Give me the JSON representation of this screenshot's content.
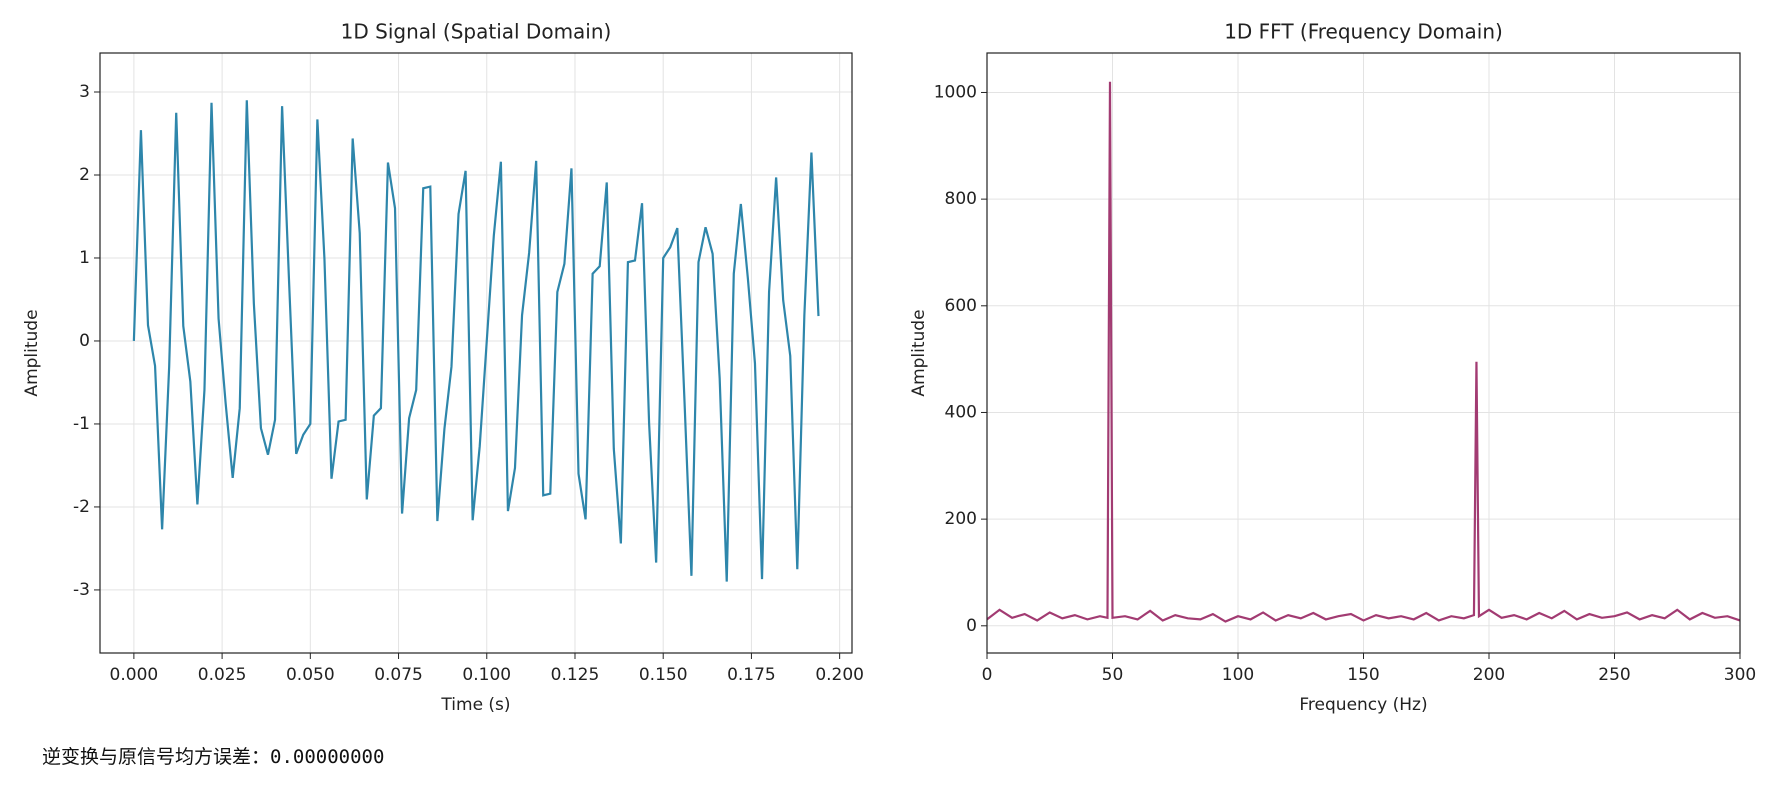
{
  "chart_data": [
    {
      "type": "line",
      "title": "1D Signal (Spatial Domain)",
      "x_label": "Time (s)",
      "y_label": "Amplitude",
      "x": [
        0,
        0.002,
        0.004,
        0.006,
        0.008,
        0.01,
        0.012,
        0.014,
        0.016,
        0.018,
        0.02,
        0.022,
        0.024,
        0.026,
        0.028,
        0.03,
        0.032,
        0.034,
        0.036,
        0.038,
        0.04,
        0.042,
        0.044,
        0.046,
        0.048,
        0.05,
        0.052,
        0.054,
        0.056,
        0.058,
        0.06,
        0.062,
        0.064,
        0.066,
        0.068,
        0.07,
        0.072,
        0.074,
        0.076,
        0.078,
        0.08,
        0.082,
        0.084,
        0.086,
        0.088,
        0.09,
        0.092,
        0.094,
        0.096,
        0.098,
        0.1,
        0.102,
        0.104,
        0.106,
        0.108,
        0.11,
        0.112,
        0.114,
        0.116,
        0.118,
        0.12,
        0.122,
        0.124,
        0.126,
        0.128,
        0.13,
        0.132,
        0.134,
        0.136,
        0.138,
        0.14,
        0.142,
        0.144,
        0.146,
        0.148,
        0.15,
        0.152,
        0.154,
        0.156,
        0.158,
        0.16,
        0.162,
        0.164,
        0.166,
        0.168,
        0.17,
        0.172,
        0.174,
        0.176,
        0.178,
        0.18,
        0.182,
        0.184,
        0.186,
        0.188,
        0.19,
        0.192,
        0.194
      ],
      "series": [
        {
          "name": "signal",
          "color": "#2e86ab",
          "values": [
            0,
            2.54,
            0.19,
            -0.3,
            -2.27,
            -0.31,
            2.75,
            0.18,
            -0.49,
            -1.97,
            -0.59,
            2.87,
            0.27,
            -0.75,
            -1.65,
            -0.81,
            2.9,
            0.45,
            -1.05,
            -1.37,
            -0.95,
            2.83,
            0.69,
            -1.36,
            -1.13,
            -1,
            2.67,
            0.99,
            -1.66,
            -0.97,
            -0.95,
            2.44,
            1.3,
            -1.91,
            -0.9,
            -0.81,
            2.15,
            1.6,
            -2.08,
            -0.93,
            -0.59,
            1.84,
            1.86,
            -2.17,
            -1.06,
            -0.31,
            1.53,
            2.05,
            -2.16,
            -1.27,
            0,
            1.27,
            2.16,
            -2.05,
            -1.53,
            0.31,
            1.06,
            2.17,
            -1.86,
            -1.84,
            0.59,
            0.93,
            2.08,
            -1.6,
            -2.15,
            0.81,
            0.9,
            1.91,
            -1.3,
            -2.44,
            0.95,
            0.97,
            1.66,
            -0.99,
            -2.67,
            1,
            1.13,
            1.36,
            -0.69,
            -2.83,
            0.95,
            1.37,
            1.05,
            -0.45,
            -2.9,
            0.81,
            1.65,
            0.75,
            -0.27,
            -2.87,
            0.59,
            1.97,
            0.49,
            -0.18,
            -2.75,
            0.31,
            2.27,
            0.3
          ]
        }
      ],
      "xlim": [
        -0.0096,
        0.2035
      ],
      "xticks": [
        {
          "value": 0,
          "label": "0.000"
        },
        {
          "value": 0.025,
          "label": "0.025"
        },
        {
          "value": 0.05,
          "label": "0.050"
        },
        {
          "value": 0.075,
          "label": "0.075"
        },
        {
          "value": 0.1,
          "label": "0.100"
        },
        {
          "value": 0.125,
          "label": "0.125"
        },
        {
          "value": 0.15,
          "label": "0.150"
        },
        {
          "value": 0.175,
          "label": "0.175"
        },
        {
          "value": 0.2,
          "label": "0.200"
        }
      ],
      "ylim": [
        -3.76,
        3.47
      ],
      "yticks": [
        -3,
        -2,
        -1,
        0,
        1,
        2,
        3
      ],
      "grid": true
    },
    {
      "type": "line",
      "title": "1D FFT (Frequency Domain)",
      "x_label": "Frequency (Hz)",
      "y_label": "Amplitude",
      "x": [
        0,
        5,
        10,
        15,
        20,
        25,
        30,
        35,
        40,
        45,
        48,
        49,
        50,
        55,
        60,
        65,
        70,
        75,
        80,
        85,
        90,
        95,
        100,
        105,
        110,
        115,
        120,
        125,
        130,
        135,
        140,
        145,
        150,
        155,
        160,
        165,
        170,
        175,
        180,
        185,
        190,
        194,
        195,
        196,
        200,
        205,
        210,
        215,
        220,
        225,
        230,
        235,
        240,
        245,
        250,
        255,
        260,
        265,
        270,
        275,
        280,
        285,
        290,
        295,
        300
      ],
      "series": [
        {
          "name": "fft",
          "color": "#a23b72",
          "values": [
            12,
            30,
            15,
            22,
            10,
            25,
            14,
            20,
            12,
            18,
            15,
            1020,
            15,
            18,
            12,
            28,
            10,
            20,
            14,
            12,
            22,
            8,
            18,
            12,
            25,
            10,
            20,
            14,
            24,
            12,
            18,
            22,
            10,
            20,
            14,
            18,
            12,
            24,
            10,
            18,
            14,
            20,
            495,
            18,
            30,
            15,
            20,
            12,
            24,
            14,
            28,
            12,
            22,
            15,
            18,
            25,
            12,
            20,
            14,
            30,
            12,
            24,
            15,
            18,
            10
          ]
        }
      ],
      "xlim": [
        0,
        300
      ],
      "xticks": [
        0,
        50,
        100,
        150,
        200,
        250,
        300
      ],
      "ylim": [
        -51,
        1074
      ],
      "yticks": [
        0,
        200,
        400,
        600,
        800,
        1000
      ],
      "grid": true
    }
  ],
  "output": {
    "text": "逆变换与原信号均方误差：0.00000000"
  }
}
